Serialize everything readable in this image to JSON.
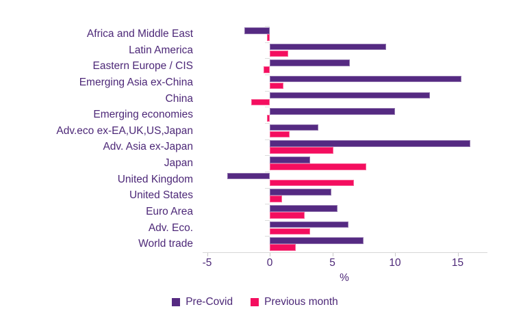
{
  "chart_data": {
    "type": "bar",
    "orientation": "horizontal",
    "title": "",
    "xlabel": "%",
    "ylabel": "",
    "categories": [
      "Africa and Middle East",
      "Latin America",
      "Eastern Europe / CIS",
      "Emerging Asia ex-China",
      "China",
      "Emerging economies",
      "Adv.eco ex-EA,UK,US,Japan",
      "Adv. Asia ex-Japan",
      "Japan",
      "United Kingdom",
      "United States",
      "Euro Area",
      "Adv. Eco.",
      "World trade"
    ],
    "series": [
      {
        "name": "Pre-Covid",
        "color": "#552a82",
        "values": [
          -2.0,
          9.3,
          6.4,
          15.3,
          12.8,
          10.0,
          3.9,
          16.0,
          3.2,
          -3.4,
          4.9,
          5.4,
          6.3,
          7.5
        ]
      },
      {
        "name": "Previous month",
        "color": "#f40e5f",
        "values": [
          -0.2,
          1.5,
          -0.5,
          1.1,
          -1.5,
          -0.2,
          1.6,
          5.1,
          7.7,
          6.7,
          1.0,
          2.8,
          3.2,
          2.1
        ]
      }
    ],
    "x_ticks": [
      -5,
      0,
      5,
      10,
      15
    ],
    "xlim": [
      -5.5,
      17.5
    ],
    "grid": false,
    "legend_position": "bottom"
  },
  "colors": {
    "pre_covid": "#552a82",
    "previous_month": "#f40e5f",
    "text": "#4c2777",
    "axis_line": "#d6d6d6",
    "tick": "#c9c9c9"
  }
}
